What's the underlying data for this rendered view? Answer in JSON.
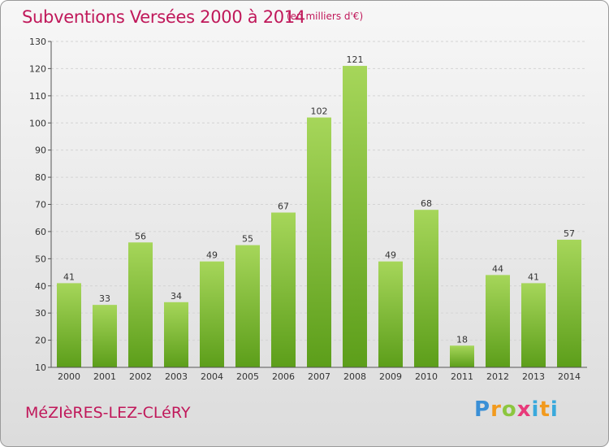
{
  "title": "Subventions Versées 2000 à 2014",
  "unit_note": "(en milliers d'€)",
  "commune": "MéZIèRES-LEZ-CLéRY",
  "logo": {
    "letters": [
      "P",
      "r",
      "o",
      "x",
      "i",
      "t",
      "i"
    ]
  },
  "colors": {
    "title": "#c0185a",
    "bar_top": "#a6d65a",
    "bar_bottom": "#5c9e1a"
  },
  "chart_data": {
    "type": "bar",
    "title": "Subventions Versées 2000 à 2014",
    "categories": [
      "2000",
      "2001",
      "2002",
      "2003",
      "2004",
      "2005",
      "2006",
      "2007",
      "2008",
      "2009",
      "2010",
      "2011",
      "2012",
      "2013",
      "2014"
    ],
    "values": [
      41,
      33,
      56,
      34,
      49,
      55,
      67,
      102,
      121,
      49,
      68,
      18,
      44,
      41,
      57
    ],
    "ylim": [
      10,
      130
    ],
    "yticks": [
      10,
      20,
      30,
      40,
      50,
      60,
      70,
      80,
      90,
      100,
      110,
      120,
      130
    ],
    "xlabel": "",
    "ylabel": "",
    "grid": true
  }
}
